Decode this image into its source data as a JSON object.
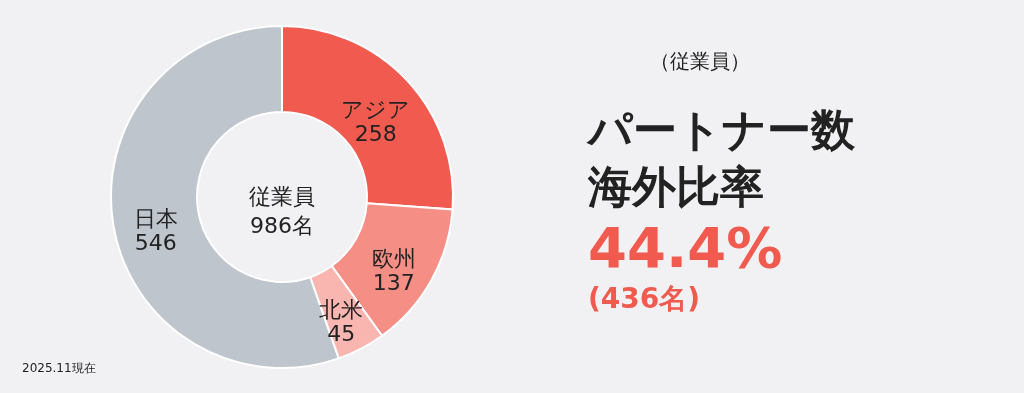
{
  "chart_data": {
    "type": "donut",
    "title": "パートナー数海外比率",
    "subtitle": "（従業員）",
    "categories": [
      "アジア",
      "欧州",
      "北米",
      "日本"
    ],
    "values": [
      258,
      137,
      45,
      546
    ],
    "colors": [
      "#f05a4f",
      "#f58f86",
      "#f9b5b0",
      "#bfc5cc"
    ],
    "data_labels": true,
    "annotations": [
      "従業員\n986名",
      "44.4%",
      "(436名)",
      "2025.11現在"
    ]
  }
}
